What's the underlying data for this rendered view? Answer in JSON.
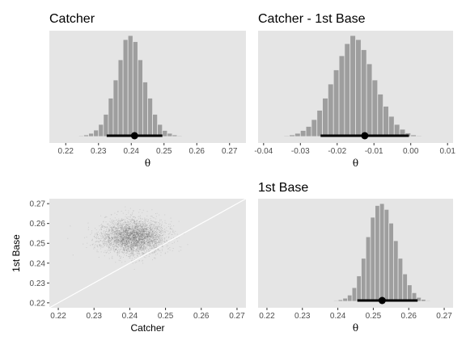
{
  "chart_data": [
    {
      "type": "histogram",
      "title": "Catcher",
      "xlabel": "θ",
      "ylabel": "",
      "xlim": [
        0.215,
        0.275
      ],
      "x_ticks": [
        "0.22",
        "0.23",
        "0.24",
        "0.25",
        "0.26",
        "0.27"
      ],
      "x_tick_values": [
        0.22,
        0.23,
        0.24,
        0.25,
        0.26,
        0.27
      ],
      "bins": {
        "start": 0.2225,
        "width": 0.0015,
        "counts": [
          1,
          2,
          4,
          8,
          16,
          30,
          55,
          95,
          140,
          190,
          240,
          250,
          235,
          190,
          135,
          95,
          55,
          30,
          15,
          8,
          4,
          2,
          1
        ]
      },
      "interval": {
        "point": 0.241,
        "low": 0.2325,
        "high": 0.2495
      },
      "grid": false,
      "panel_background": "#e5e5e5",
      "bar_color": "#9e9e9e"
    },
    {
      "type": "histogram",
      "title": "Catcher - 1st Base",
      "xlabel": "θ",
      "ylabel": "",
      "xlim": [
        -0.0415,
        0.0115
      ],
      "x_ticks": [
        "-0.04",
        "-0.03",
        "-0.02",
        "-0.01",
        "0.00",
        "0.01"
      ],
      "x_tick_values": [
        -0.04,
        -0.03,
        -0.02,
        -0.01,
        0.0,
        0.01
      ],
      "bins": {
        "start": -0.036,
        "width": 0.0015,
        "counts": [
          1,
          2,
          4,
          8,
          15,
          25,
          42,
          65,
          95,
          130,
          165,
          200,
          230,
          250,
          240,
          215,
          180,
          140,
          105,
          75,
          50,
          30,
          18,
          9,
          4,
          2,
          1
        ]
      },
      "interval": {
        "point": -0.0125,
        "low": -0.0245,
        "high": -0.0005
      },
      "grid": false,
      "panel_background": "#e5e5e5",
      "bar_color": "#9e9e9e"
    },
    {
      "type": "scatter",
      "title": "",
      "xlabel": "Catcher",
      "ylabel": "1st Base",
      "xlim": [
        0.2175,
        0.2725
      ],
      "ylim": [
        0.2175,
        0.2725
      ],
      "x_ticks": [
        "0.22",
        "0.23",
        "0.24",
        "0.25",
        "0.26",
        "0.27"
      ],
      "x_tick_values": [
        0.22,
        0.23,
        0.24,
        0.25,
        0.26,
        0.27
      ],
      "y_ticks": [
        "0.22",
        "0.23",
        "0.24",
        "0.25",
        "0.26",
        "0.27"
      ],
      "y_tick_values": [
        0.22,
        0.23,
        0.24,
        0.25,
        0.26,
        0.27
      ],
      "points": {
        "n": 4000,
        "x_mean": 0.241,
        "x_sd": 0.0044,
        "y_mean": 0.2535,
        "y_sd": 0.0043,
        "color": "#4d4d4d"
      },
      "reference_line": {
        "x": [
          0.2175,
          0.2725
        ],
        "y": [
          0.2175,
          0.2725
        ],
        "color": "#ffffff"
      },
      "grid": false,
      "panel_background": "#e5e5e5"
    },
    {
      "type": "histogram",
      "title": "1st Base",
      "xlabel": "θ",
      "ylabel": "",
      "xlim": [
        0.2175,
        0.2725
      ],
      "x_ticks": [
        "0.22",
        "0.23",
        "0.24",
        "0.25",
        "0.26",
        "0.27"
      ],
      "x_tick_values": [
        0.22,
        0.23,
        0.24,
        0.25,
        0.26,
        0.27
      ],
      "bins": {
        "start": 0.2375,
        "width": 0.0013,
        "counts": [
          1,
          2,
          4,
          8,
          16,
          35,
          65,
          110,
          165,
          215,
          245,
          250,
          235,
          200,
          155,
          110,
          70,
          42,
          22,
          10,
          5,
          2,
          1
        ]
      },
      "interval": {
        "point": 0.2525,
        "low": 0.2455,
        "high": 0.2625
      },
      "grid": false,
      "panel_background": "#e5e5e5",
      "bar_color": "#9e9e9e"
    }
  ]
}
